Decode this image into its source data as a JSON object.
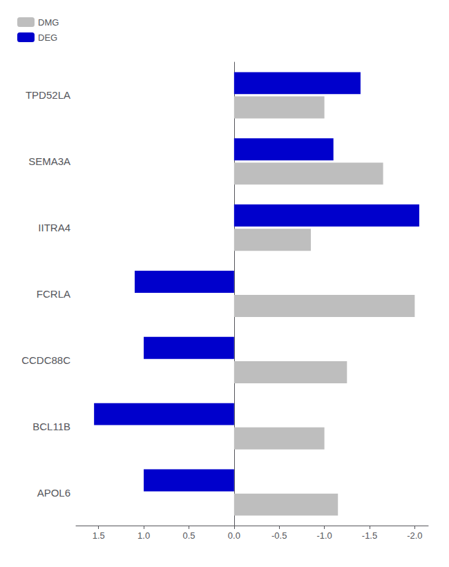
{
  "chart_data": {
    "type": "bar",
    "orientation": "horizontal",
    "categories": [
      "TPD52LA",
      "SEMA3A",
      "IITRA4",
      "FCRLA",
      "CCDC88C",
      "BCL11B",
      "APOL6"
    ],
    "series": [
      {
        "name": "DMG",
        "color": "#BEBEBE",
        "values": [
          -1.0,
          -1.65,
          -0.85,
          -2.0,
          -1.25,
          -1.0,
          -1.15
        ]
      },
      {
        "name": "DEG",
        "color": "#0000CC",
        "values": [
          -1.4,
          -1.1,
          -2.05,
          1.1,
          1.0,
          1.55,
          1.0
        ]
      }
    ],
    "xlim": [
      1.75,
      -2.15
    ],
    "xticks": [
      1.5,
      {
        "value": 1.0,
        "label": "1.0"
      },
      0.5,
      {
        "value": 0.0,
        "label": "0.0"
      },
      -0.5,
      {
        "value": -1.0,
        "label": "-1.0"
      },
      -1.5,
      {
        "value": -2.0,
        "label": "-2.0"
      }
    ],
    "grid": false,
    "legend": "upper left"
  }
}
